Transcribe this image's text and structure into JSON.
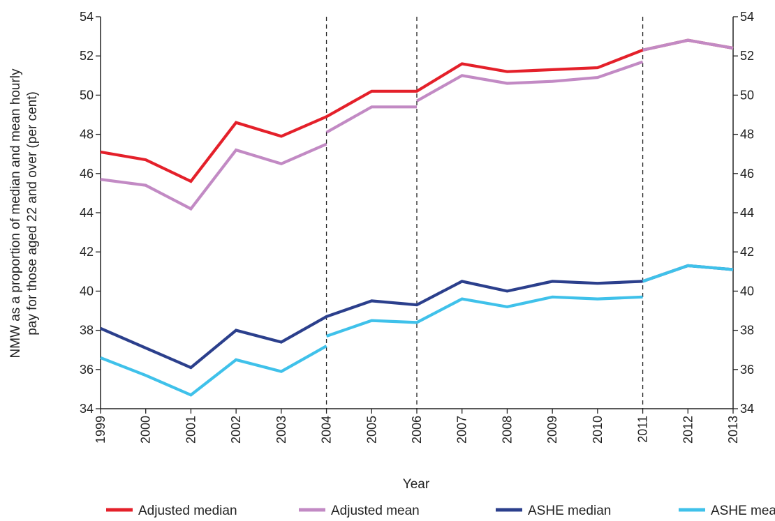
{
  "chart_data": {
    "type": "line",
    "xlabel": "Year",
    "ylabel": "NMW as a proportion of median and mean hourly pay for those aged 22 and over (per cent)",
    "categories": [
      "1999",
      "2000",
      "2001",
      "2002",
      "2003",
      "2004",
      "2005",
      "2006",
      "2007",
      "2008",
      "2009",
      "2010",
      "2011",
      "2012",
      "2013"
    ],
    "ylim": [
      34,
      54
    ],
    "yticks": [
      34,
      36,
      38,
      40,
      42,
      44,
      46,
      48,
      50,
      52,
      54
    ],
    "dual_y_axis": true,
    "grid": false,
    "series_breaks_after": [
      "2004",
      "2006",
      "2011"
    ],
    "legend_position": "bottom",
    "series": [
      {
        "name": "Adjusted median",
        "color": "#e4202a",
        "segments": [
          {
            "x": [
              "1999",
              "2000",
              "2001",
              "2002",
              "2003",
              "2004",
              "2005",
              "2006",
              "2007",
              "2008",
              "2009",
              "2010",
              "2011"
            ],
            "values": [
              47.1,
              46.7,
              45.6,
              48.6,
              47.9,
              48.9,
              50.2,
              50.2,
              51.6,
              51.2,
              51.3,
              51.4,
              52.3
            ]
          },
          {
            "x": [
              "2011",
              "2012",
              "2013"
            ],
            "values": [
              52.3,
              52.8,
              52.4
            ],
            "dashed": true
          }
        ]
      },
      {
        "name": "Adjusted mean",
        "color": "#c28ac4",
        "segments": [
          {
            "x": [
              "1999",
              "2000",
              "2001",
              "2002",
              "2003",
              "2004"
            ],
            "values": [
              45.7,
              45.4,
              44.2,
              47.2,
              46.5,
              47.5
            ]
          },
          {
            "x": [
              "2004",
              "2005",
              "2006"
            ],
            "values": [
              48.1,
              49.4,
              49.4
            ]
          },
          {
            "x": [
              "2006",
              "2007",
              "2008",
              "2009",
              "2010",
              "2011"
            ],
            "values": [
              49.7,
              51.0,
              50.6,
              50.7,
              50.9,
              51.7
            ]
          },
          {
            "x": [
              "2011",
              "2012",
              "2013"
            ],
            "values": [
              52.3,
              52.8,
              52.4
            ],
            "dashed": true
          }
        ]
      },
      {
        "name": "ASHE median",
        "color": "#2b3f8c",
        "segments": [
          {
            "x": [
              "1999",
              "2000",
              "2001",
              "2002",
              "2003",
              "2004",
              "2005",
              "2006",
              "2007",
              "2008",
              "2009",
              "2010",
              "2011"
            ],
            "values": [
              38.1,
              37.1,
              36.1,
              38.0,
              37.4,
              38.7,
              39.5,
              39.3,
              40.5,
              40.0,
              40.5,
              40.4,
              40.5
            ]
          },
          {
            "x": [
              "2011",
              "2012",
              "2013"
            ],
            "values": [
              40.5,
              41.3,
              41.1
            ],
            "dashed": true
          }
        ]
      },
      {
        "name": "ASHE mean",
        "color": "#3fc1ea",
        "segments": [
          {
            "x": [
              "1999",
              "2000",
              "2001",
              "2002",
              "2003",
              "2004"
            ],
            "values": [
              36.6,
              35.7,
              34.7,
              36.5,
              35.9,
              37.2
            ]
          },
          {
            "x": [
              "2004",
              "2005",
              "2006",
              "2007",
              "2008",
              "2009",
              "2010",
              "2011"
            ],
            "values": [
              37.7,
              38.5,
              38.4,
              39.6,
              39.2,
              39.7,
              39.6,
              39.7
            ]
          },
          {
            "x": [
              "2011",
              "2012",
              "2013"
            ],
            "values": [
              40.5,
              41.3,
              41.1
            ],
            "dashed": true
          }
        ]
      }
    ]
  }
}
